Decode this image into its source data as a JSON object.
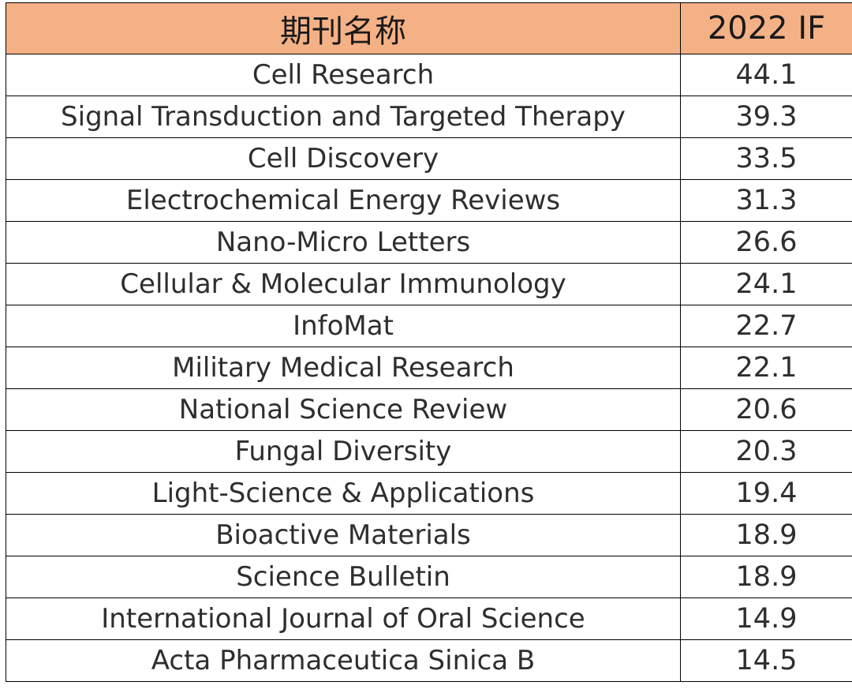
{
  "table": {
    "header_bg": "#f5b186",
    "headers": {
      "name": "期刊名称",
      "if": "2022 IF"
    },
    "rows": [
      {
        "name": "Cell Research",
        "if": "44.1"
      },
      {
        "name": "Signal Transduction and Targeted Therapy",
        "if": "39.3"
      },
      {
        "name": "Cell Discovery",
        "if": "33.5"
      },
      {
        "name": "Electrochemical Energy Reviews",
        "if": "31.3"
      },
      {
        "name": "Nano-Micro Letters",
        "if": "26.6"
      },
      {
        "name": "Cellular & Molecular Immunology",
        "if": "24.1"
      },
      {
        "name": "InfoMat",
        "if": "22.7"
      },
      {
        "name": "Military Medical Research",
        "if": "22.1"
      },
      {
        "name": "National Science Review",
        "if": "20.6"
      },
      {
        "name": "Fungal Diversity",
        "if": "20.3"
      },
      {
        "name": "Light-Science & Applications",
        "if": "19.4"
      },
      {
        "name": "Bioactive Materials",
        "if": "18.9"
      },
      {
        "name": "Science Bulletin",
        "if": "18.9"
      },
      {
        "name": "International Journal of Oral Science",
        "if": "14.9"
      },
      {
        "name": "Acta Pharmaceutica Sinica B",
        "if": "14.5"
      }
    ]
  }
}
